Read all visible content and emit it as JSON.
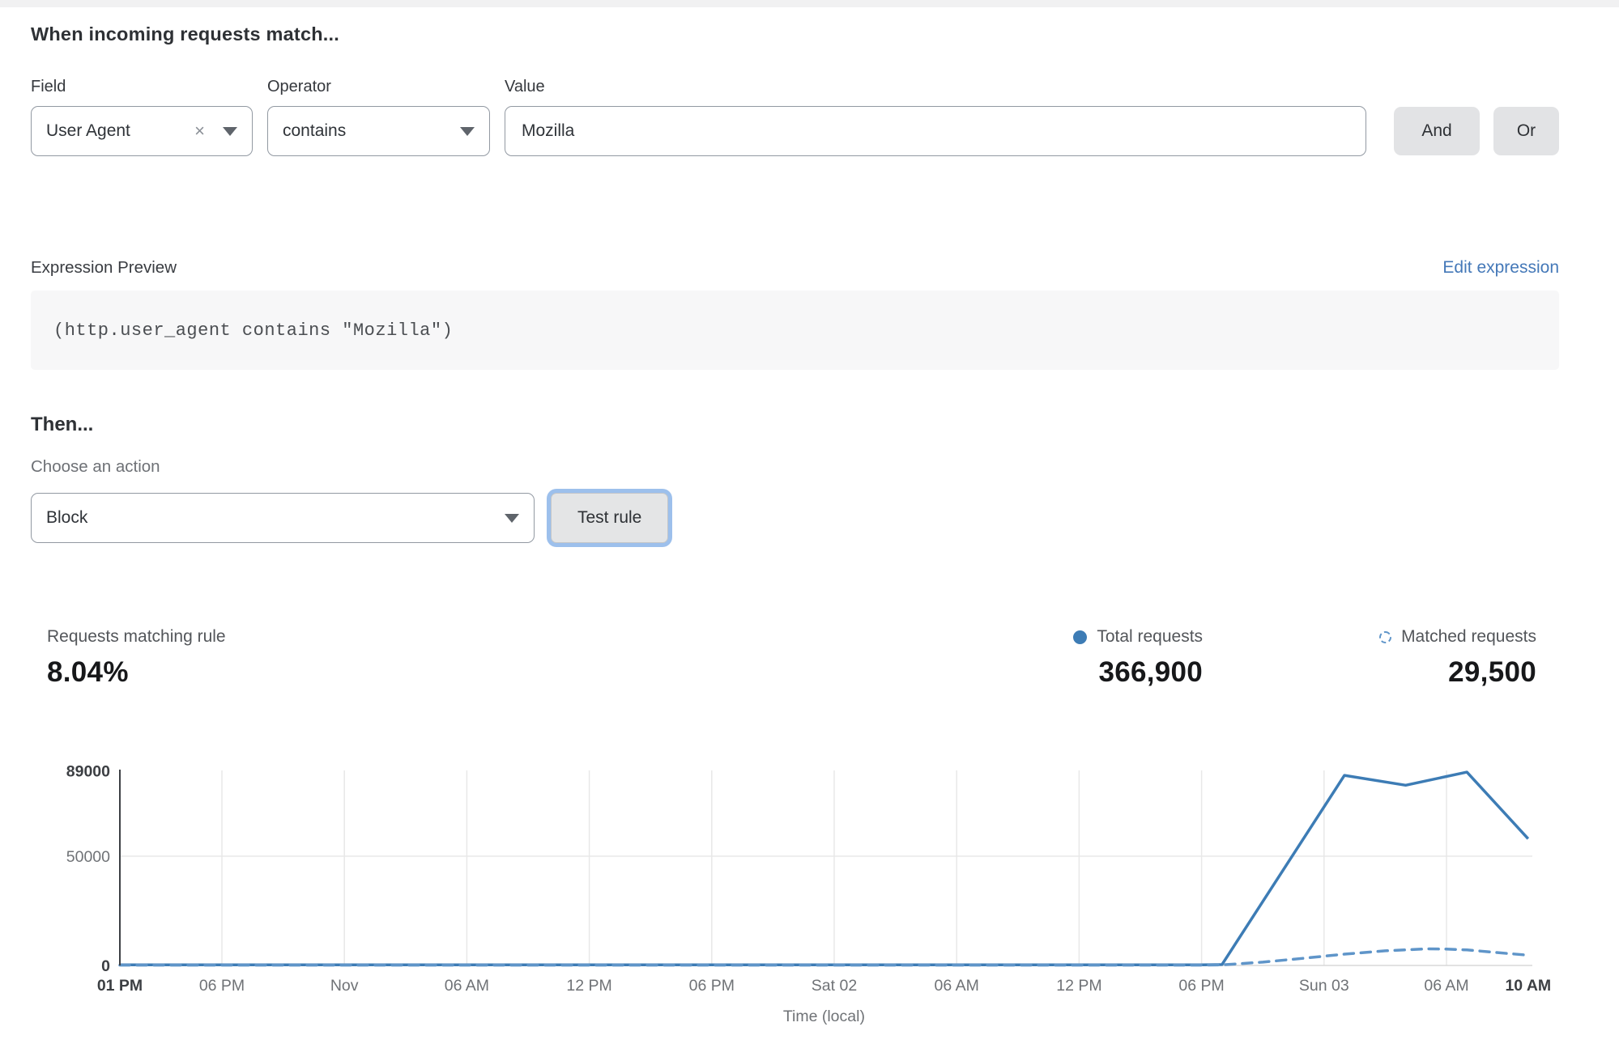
{
  "match_section": {
    "heading": "When incoming requests match...",
    "field_label": "Field",
    "operator_label": "Operator",
    "value_label": "Value",
    "field_value": "User Agent",
    "operator_value": "contains",
    "value_value": "Mozilla",
    "and_label": "And",
    "or_label": "Or"
  },
  "icons": {
    "clear_glyph": "×"
  },
  "expression": {
    "label": "Expression Preview",
    "edit_link": "Edit expression",
    "code": "(http.user_agent contains \"Mozilla\")"
  },
  "then_section": {
    "heading": "Then...",
    "action_label": "Choose an action",
    "action_value": "Block",
    "test_button": "Test rule"
  },
  "stats": {
    "matching_label": "Requests matching rule",
    "matching_value": "8.04%",
    "total_label": "Total requests",
    "total_value": "366,900",
    "matched_label": "Matched requests",
    "matched_value": "29,500"
  },
  "colors": {
    "total_line": "#3d7cb5",
    "matched_line": "#5f95c9",
    "link_blue": "#4478b8",
    "grid": "#e8e8e8",
    "baseline": "#d8d8d8",
    "axis": "#3d4045",
    "tick_regular": "#6f7276",
    "tick_bold": "#3c3f43"
  },
  "chart_data": {
    "type": "line",
    "xlabel": "Time (local)",
    "x_unit": "hours from Thu Oct 31 1:00 PM to Sun Nov 3 10:00 AM (local)",
    "ylim": [
      0,
      89000
    ],
    "grid": true,
    "legend_position": "above-right",
    "xticks": [
      {
        "h": 0,
        "label": "01 PM",
        "bold": true,
        "grid": false
      },
      {
        "h": 5,
        "label": "06 PM"
      },
      {
        "h": 11,
        "label": "Nov"
      },
      {
        "h": 17,
        "label": "06 AM"
      },
      {
        "h": 23,
        "label": "12 PM"
      },
      {
        "h": 29,
        "label": "06 PM"
      },
      {
        "h": 35,
        "label": "Sat 02"
      },
      {
        "h": 41,
        "label": "06 AM"
      },
      {
        "h": 47,
        "label": "12 PM"
      },
      {
        "h": 53,
        "label": "06 PM"
      },
      {
        "h": 59,
        "label": "Sun 03"
      },
      {
        "h": 65,
        "label": "06 AM"
      },
      {
        "h": 69,
        "label": "10 AM",
        "bold": true,
        "grid": false
      }
    ],
    "yticks": [
      {
        "v": 0,
        "label": "0",
        "bold": true
      },
      {
        "v": 50000,
        "label": "50000"
      },
      {
        "v": 89000,
        "label": "89000",
        "bold": true
      }
    ],
    "series": [
      {
        "name": "Total requests",
        "style": "solid",
        "color": "#3d7cb5",
        "points": [
          [
            0,
            300
          ],
          [
            5,
            300
          ],
          [
            11,
            300
          ],
          [
            17,
            300
          ],
          [
            23,
            300
          ],
          [
            29,
            300
          ],
          [
            35,
            300
          ],
          [
            41,
            300
          ],
          [
            47,
            300
          ],
          [
            53,
            300
          ],
          [
            54,
            400
          ],
          [
            60,
            87000
          ],
          [
            63,
            82500
          ],
          [
            66,
            88500
          ],
          [
            69,
            58000
          ]
        ]
      },
      {
        "name": "Matched requests",
        "style": "dashed",
        "color": "#5f95c9",
        "points": [
          [
            0,
            150
          ],
          [
            5,
            150
          ],
          [
            11,
            150
          ],
          [
            17,
            150
          ],
          [
            23,
            150
          ],
          [
            29,
            150
          ],
          [
            35,
            150
          ],
          [
            41,
            150
          ],
          [
            47,
            150
          ],
          [
            53,
            150
          ],
          [
            54,
            250
          ],
          [
            56,
            1500
          ],
          [
            58,
            3300
          ],
          [
            60,
            5200
          ],
          [
            62,
            6700
          ],
          [
            64,
            7600
          ],
          [
            65,
            7500
          ],
          [
            66,
            7100
          ],
          [
            67,
            6300
          ],
          [
            68,
            5500
          ],
          [
            69,
            4700
          ]
        ]
      }
    ]
  }
}
